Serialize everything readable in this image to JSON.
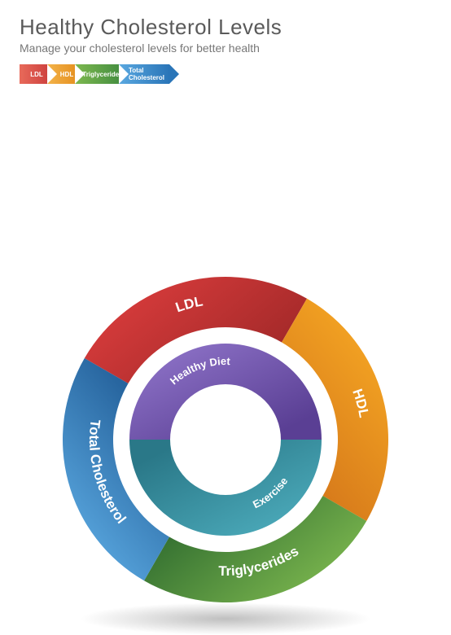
{
  "header": {
    "title": "Healthy Cholesterol Levels",
    "subtitle": "Manage your cholesterol levels for better health"
  },
  "legend": [
    {
      "label": "LDL",
      "bg": "#c93a3a",
      "bgLight": "#e86a5a"
    },
    {
      "label": "HDL",
      "bg": "#e38b1a",
      "bgLight": "#f3b34a"
    },
    {
      "label": "Triglycerides",
      "bg": "#3f8a3f",
      "bgLight": "#7db84f"
    },
    {
      "label": "Total Cholesterol",
      "bg": "#2a75b8",
      "bgLight": "#5aa8e0"
    }
  ],
  "outerRing": {
    "outerRadius": 200,
    "innerRadius": 138,
    "segments": [
      {
        "label": "LDL",
        "startAngle": -60,
        "endAngle": 30,
        "c1": "#d93c3c",
        "c2": "#a02828",
        "labelAngle": -15
      },
      {
        "label": "HDL",
        "startAngle": 30,
        "endAngle": 120,
        "c1": "#f5a623",
        "c2": "#d4761a",
        "labelAngle": 75
      },
      {
        "label": "Triglycerides",
        "startAngle": 120,
        "endAngle": 210,
        "c1": "#7db84f",
        "c2": "#2f6b2f",
        "labelAngle": 165
      },
      {
        "label": "Total Cholesterol",
        "startAngle": 210,
        "endAngle": 300,
        "c1": "#5aa8e0",
        "c2": "#1f5a94",
        "labelAngle": 255
      }
    ]
  },
  "innerRing": {
    "outerRadius": 118,
    "innerRadius": 68,
    "segments": [
      {
        "label": "Healthy Diet",
        "startAngle": -90,
        "endAngle": 90,
        "c1": "#8a6fc4",
        "c2": "#5a3f94",
        "labelAngle": -20
      },
      {
        "label": "Exercise",
        "startAngle": 90,
        "endAngle": 270,
        "c1": "#4aa8b8",
        "c2": "#2a7888",
        "labelAngle": 140
      }
    ]
  },
  "centerHole": {
    "radius": 58,
    "fill": "#ffffff"
  },
  "gapRing": {
    "radius": 128,
    "fill": "#ffffff"
  }
}
